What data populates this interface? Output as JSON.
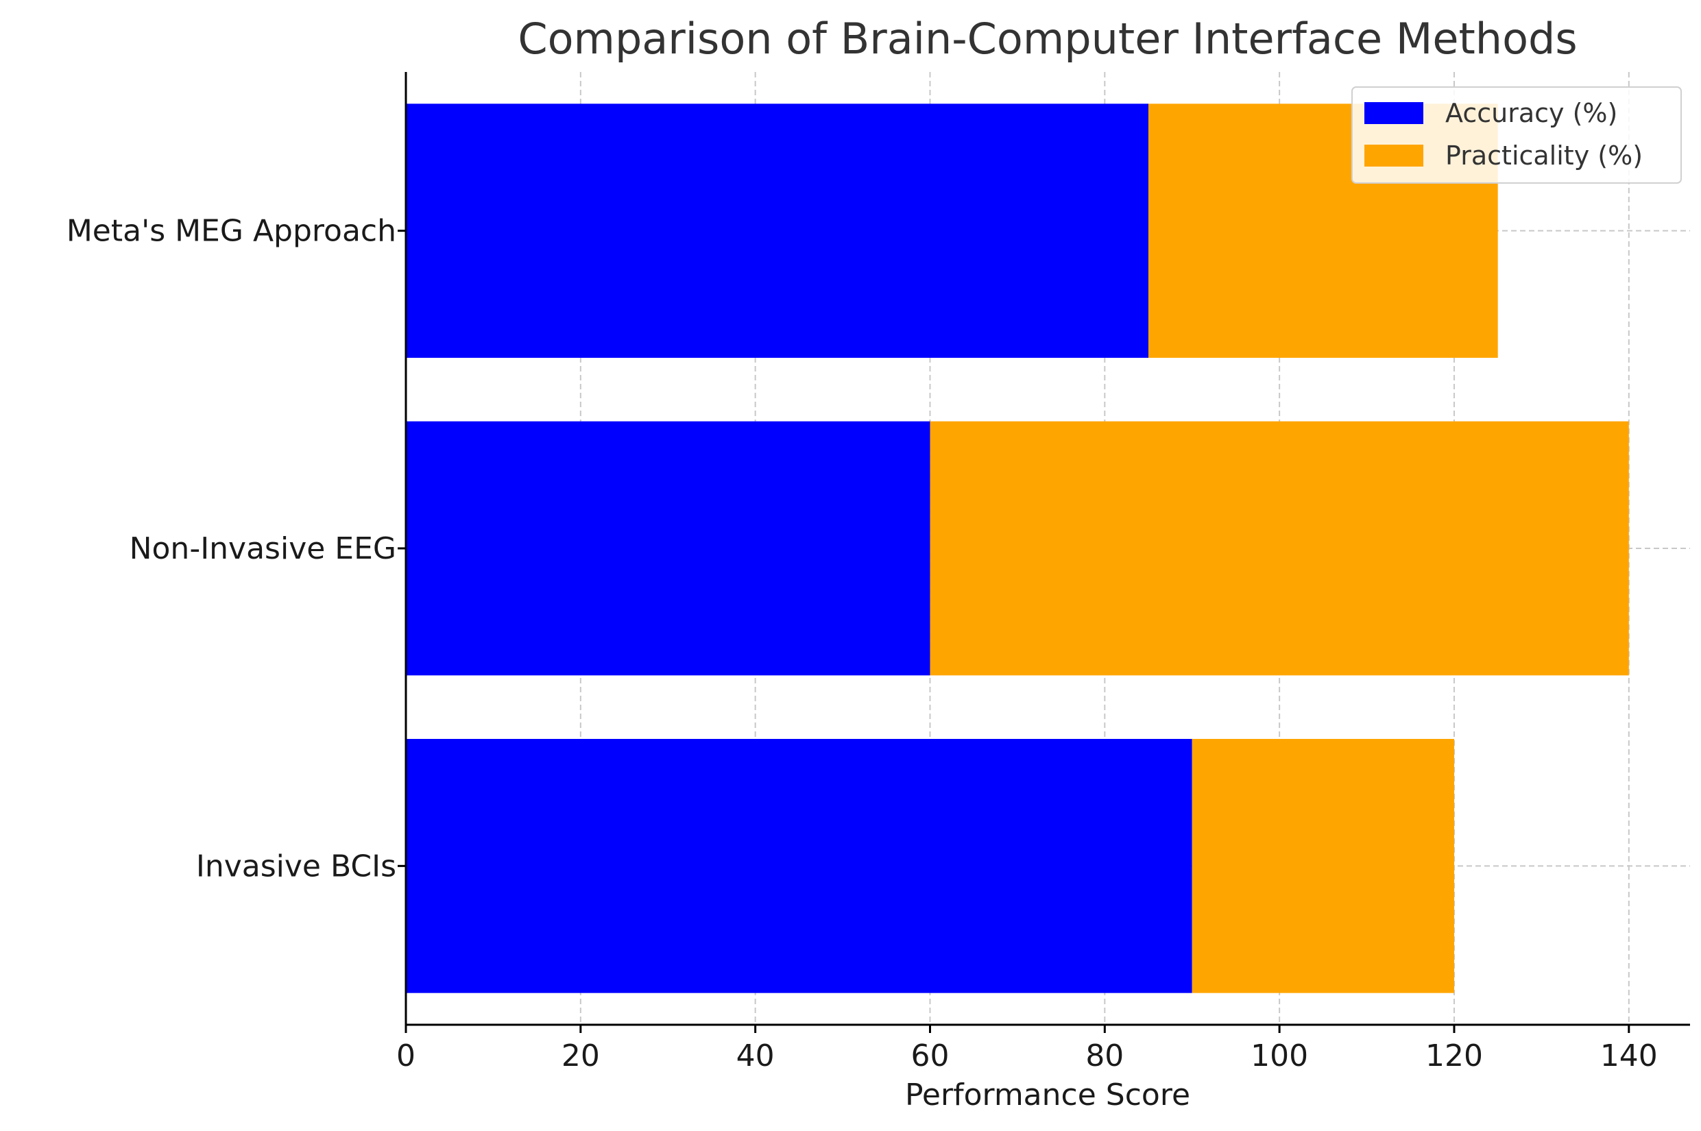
{
  "chart_data": {
    "type": "bar",
    "orientation": "horizontal",
    "stacked": true,
    "title": "Comparison of Brain-Computer Interface Methods",
    "xlabel": "Performance Score",
    "ylabel": "",
    "xlim": [
      0,
      147
    ],
    "x_ticks": [
      0,
      20,
      40,
      60,
      80,
      100,
      120,
      140
    ],
    "categories": [
      "Invasive BCIs",
      "Non-Invasive EEG",
      "Meta's MEG Approach"
    ],
    "series": [
      {
        "name": "Accuracy (%)",
        "color": "#0000ff",
        "values": [
          90,
          60,
          85
        ]
      },
      {
        "name": "Practicality (%)",
        "color": "#ffa500",
        "values": [
          30,
          80,
          40
        ]
      }
    ],
    "grid": true,
    "legend_position": "top-right"
  }
}
